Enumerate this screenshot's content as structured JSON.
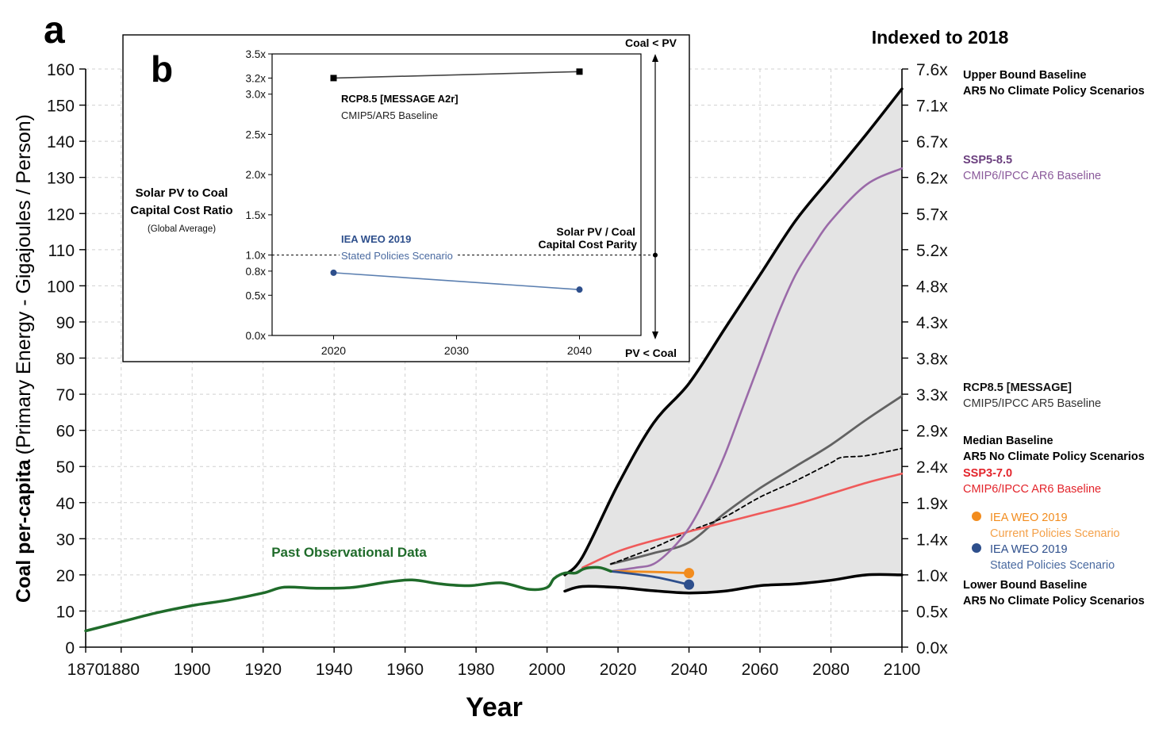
{
  "chart_data": [
    {
      "panel": "a",
      "type": "line",
      "panel_label": "a",
      "xlabel": "Year",
      "ylabel_bold": "Coal per-capita",
      "ylabel_rest": "(Primary Energy - Gigajoules / Person)",
      "xlim": [
        1870,
        2100
      ],
      "ylim": [
        0,
        160
      ],
      "x_ticks": [
        1870,
        1880,
        1900,
        1920,
        1940,
        1960,
        1980,
        2000,
        2020,
        2040,
        2060,
        2080,
        2100
      ],
      "y_ticks": [
        0,
        10,
        20,
        30,
        40,
        50,
        60,
        70,
        80,
        90,
        100,
        110,
        120,
        130,
        140,
        150,
        160
      ],
      "right_axis_title": "Indexed to 2018",
      "right_ticks": [
        "0.0x",
        "0.5x",
        "1.0x",
        "1.4x",
        "1.9x",
        "2.4x",
        "2.9x",
        "3.3x",
        "3.8x",
        "4.3x",
        "4.8x",
        "5.2x",
        "5.7x",
        "6.2x",
        "6.7x",
        "7.1x",
        "7.6x"
      ],
      "annotation": "Past Observational Data",
      "colors": {
        "observed": "#1f6b2a",
        "bound": "#000000",
        "band": "#e4e4e4",
        "ssp585": "#9a6aa8",
        "rcp85": "#626262",
        "median": "#000000",
        "ssp370": "#ef5a5a",
        "iea_current": "#f28c1e",
        "iea_stated": "#2e4f8c",
        "grid": "#d0d0d0"
      },
      "series": [
        {
          "name": "Past Observational Data",
          "key": "observed",
          "x": [
            1870,
            1880,
            1890,
            1900,
            1910,
            1920,
            1926,
            1935,
            1945,
            1955,
            1962,
            1970,
            1978,
            1987,
            1995,
            2000,
            2002,
            2005,
            2008,
            2010,
            2012,
            2015,
            2018
          ],
          "y": [
            4.5,
            7,
            9.5,
            11.5,
            13,
            15,
            16.6,
            16.3,
            16.5,
            18,
            18.6,
            17.5,
            17,
            17.8,
            16,
            16.5,
            19,
            20.5,
            20.5,
            21.5,
            22,
            22,
            21
          ]
        },
        {
          "name": "Upper Bound Baseline",
          "key": "upper",
          "x": [
            2005,
            2010,
            2020,
            2030,
            2040,
            2050,
            2060,
            2070,
            2080,
            2090,
            2100
          ],
          "y": [
            20,
            25,
            45,
            62,
            73,
            88,
            103,
            118,
            130,
            142,
            154.5
          ]
        },
        {
          "name": "Lower Bound Baseline",
          "key": "lower",
          "x": [
            2005,
            2010,
            2020,
            2030,
            2040,
            2050,
            2060,
            2070,
            2080,
            2090,
            2100
          ],
          "y": [
            15.5,
            16.8,
            16.5,
            15.6,
            15,
            15.5,
            17,
            17.5,
            18.5,
            20,
            20
          ]
        },
        {
          "name": "SSP5-8.5",
          "key": "ssp585",
          "x": [
            2018,
            2025,
            2030,
            2035,
            2040,
            2045,
            2050,
            2055,
            2060,
            2065,
            2070,
            2075,
            2080,
            2090,
            2100
          ],
          "y": [
            21,
            22,
            23,
            27,
            33,
            42,
            53,
            66,
            79,
            92,
            103,
            111,
            118,
            128,
            132.5
          ]
        },
        {
          "name": "RCP8.5 [MESSAGE]",
          "key": "rcp85",
          "x": [
            2018,
            2030,
            2040,
            2050,
            2060,
            2070,
            2080,
            2090,
            2100
          ],
          "y": [
            23,
            26,
            29,
            37,
            44,
            50,
            56,
            63,
            69.5
          ]
        },
        {
          "name": "Median Baseline",
          "key": "median",
          "x": [
            2018,
            2030,
            2040,
            2050,
            2060,
            2070,
            2080,
            2083,
            2090,
            2100
          ],
          "y": [
            23,
            27.5,
            32,
            36,
            41.5,
            46,
            51,
            52.5,
            53,
            55
          ]
        },
        {
          "name": "SSP3-7.0",
          "key": "ssp370",
          "x": [
            2010,
            2020,
            2030,
            2040,
            2050,
            2060,
            2070,
            2080,
            2090,
            2100
          ],
          "y": [
            22,
            26.5,
            29.5,
            32,
            34.5,
            37,
            39.5,
            42.5,
            45.5,
            48
          ]
        },
        {
          "name": "IEA WEO 2019 Current Policies Scenario",
          "key": "iea_current",
          "x": [
            2018,
            2030,
            2040
          ],
          "y": [
            21,
            20.8,
            20.5
          ]
        },
        {
          "name": "IEA WEO 2019 Stated Policies Scenario",
          "key": "iea_stated",
          "x": [
            2018,
            2030,
            2040
          ],
          "y": [
            21,
            19.5,
            17.3
          ]
        }
      ],
      "markers": [
        {
          "series": "IEA WEO 2019 Current Policies Scenario",
          "x": 2040,
          "y": 20.5
        },
        {
          "series": "IEA WEO 2019 Stated Policies Scenario",
          "x": 2040,
          "y": 17.3
        }
      ],
      "legend": [
        {
          "line1": "Upper Bound Baseline",
          "line2": "AR5 No Climate Policy Scenarios",
          "color1": "#000000",
          "color2": "#000000"
        },
        {
          "line1": "SSP5-8.5",
          "line2": "CMIP6/IPCC AR6 Baseline",
          "color1": "#6b3f7e",
          "color2": "#8b5a9b"
        },
        {
          "line1": "RCP8.5 [MESSAGE]",
          "line2": "CMIP5/IPCC AR5 Baseline",
          "color1": "#111111",
          "color2": "#333333"
        },
        {
          "line1": "Median Baseline",
          "line2": "AR5 No Climate Policy Scenarios",
          "color1": "#000000",
          "color2": "#000000"
        },
        {
          "line1": "SSP3-7.0",
          "line2": "CMIP6/IPCC AR6 Baseline",
          "color1": "#e3242b",
          "color2": "#e3242b"
        },
        {
          "line1": "IEA WEO 2019",
          "line2": "Current Policies Scenario",
          "color1": "#f28c1e",
          "color2": "#f4a14a",
          "dot": "#f28c1e"
        },
        {
          "line1": "IEA WEO 2019",
          "line2": "Stated Policies Scenario",
          "color1": "#2e4f8c",
          "color2": "#4a6aa0",
          "dot": "#2e4f8c"
        },
        {
          "line1": "Lower Bound Baseline",
          "line2": "AR5 No Climate Policy Scenarios",
          "color1": "#000000",
          "color2": "#000000"
        }
      ]
    },
    {
      "panel": "b",
      "type": "line",
      "panel_label": "b",
      "title_line1": "Solar PV to Coal",
      "title_line2": "Capital Cost Ratio",
      "subtitle": "(Global Average)",
      "xlim": [
        2015,
        2045
      ],
      "ylim": [
        0,
        3.5
      ],
      "x_ticks": [
        2020,
        2030,
        2040
      ],
      "y_ticks": [
        {
          "value": 0.0,
          "label": "0.0x"
        },
        {
          "value": 0.5,
          "label": "0.5x"
        },
        {
          "value": 0.8,
          "label": "0.8x"
        },
        {
          "value": 1.0,
          "label": "1.0x"
        },
        {
          "value": 1.5,
          "label": "1.5x"
        },
        {
          "value": 2.0,
          "label": "2.0x"
        },
        {
          "value": 2.5,
          "label": "2.5x"
        },
        {
          "value": 3.0,
          "label": "3.0x"
        },
        {
          "value": 3.2,
          "label": "3.2x"
        },
        {
          "value": 3.5,
          "label": "3.5x"
        }
      ],
      "series": [
        {
          "name": "RCP8.5 [MESSAGE A2r]",
          "sub": "CMIP5/AR5 Baseline",
          "color": "#444444",
          "marker": "square",
          "x": [
            2020,
            2040
          ],
          "y": [
            3.2,
            3.28
          ]
        },
        {
          "name": "IEA WEO 2019",
          "sub": "Stated Policies Scenario",
          "color": "#5b7fb0",
          "marker": "circle",
          "x": [
            2020,
            2040
          ],
          "y": [
            0.78,
            0.57
          ]
        }
      ],
      "parity": {
        "value": 1.0,
        "label_line1": "Solar PV / Coal",
        "label_line2": "Capital Cost Parity"
      },
      "arrow_top_label": "Coal < PV",
      "arrow_bottom_label": "PV < Coal"
    }
  ]
}
